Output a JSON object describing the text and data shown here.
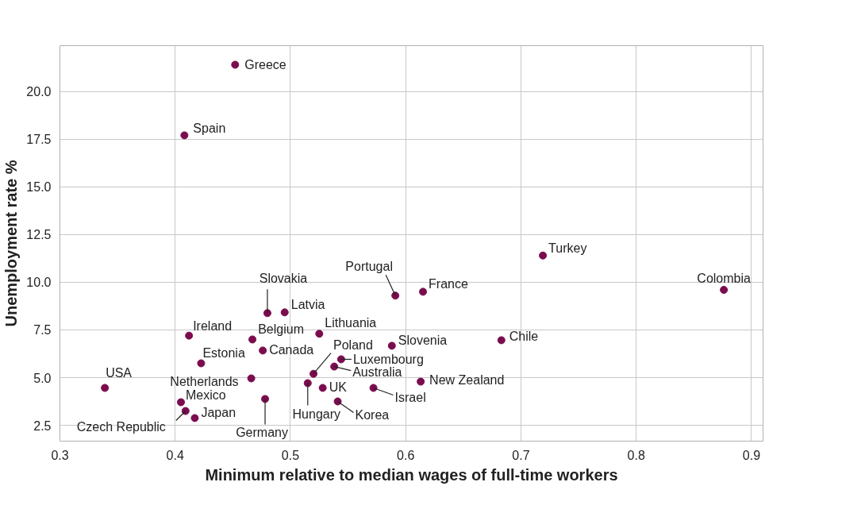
{
  "chart_data": {
    "type": "scatter",
    "xlabel": "Minimum relative to median wages of full-time workers",
    "ylabel": "Unemployment rate %",
    "xlim": [
      0.3,
      0.91
    ],
    "ylim": [
      1.67,
      22.4
    ],
    "xticks": [
      0.3,
      0.4,
      0.5,
      0.6,
      0.7,
      0.8,
      0.9
    ],
    "yticks": [
      {
        "value": 2.5,
        "label": "2.5"
      },
      {
        "value": 5,
        "label": "5.0"
      },
      {
        "value": 7.5,
        "label": "7.5"
      },
      {
        "value": 10,
        "label": "10.0"
      },
      {
        "value": 12.5,
        "label": "12.5"
      },
      {
        "value": 15,
        "label": "15.0"
      },
      {
        "value": 17.5,
        "label": "17.5"
      },
      {
        "value": 20,
        "label": "20.0"
      }
    ],
    "grid": true,
    "marker": "circle",
    "series": [
      {
        "name": "Greece",
        "color": "#7b0c4e",
        "x": [
          0.452
        ],
        "values": [
          21.4
        ]
      },
      {
        "name": "Spain",
        "color": "#7b0c4e",
        "x": [
          0.408
        ],
        "values": [
          17.7
        ]
      },
      {
        "name": "Turkey",
        "color": "#7b0c4e",
        "x": [
          0.719
        ],
        "values": [
          11.4
        ]
      },
      {
        "name": "Colombia",
        "color": "#7b0c4e",
        "x": [
          0.876
        ],
        "values": [
          9.6
        ]
      },
      {
        "name": "France",
        "color": "#7b0c4e",
        "x": [
          0.615
        ],
        "values": [
          9.5
        ]
      },
      {
        "name": "Portugal",
        "color": "#7b0c4e",
        "x": [
          0.591
        ],
        "values": [
          9.3
        ]
      },
      {
        "name": "Chile",
        "color": "#7b0c4e",
        "x": [
          0.683
        ],
        "values": [
          6.96
        ]
      },
      {
        "name": "Slovenia",
        "color": "#7b0c4e",
        "x": [
          0.588
        ],
        "values": [
          6.67
        ]
      },
      {
        "name": "Slovakia",
        "color": "#7b0c4e",
        "x": [
          0.48
        ],
        "values": [
          8.38
        ]
      },
      {
        "name": "Latvia",
        "color": "#7b0c4e",
        "x": [
          0.495
        ],
        "values": [
          8.42
        ]
      },
      {
        "name": "Lithuania",
        "color": "#7b0c4e",
        "x": [
          0.525
        ],
        "values": [
          7.3
        ]
      },
      {
        "name": "Ireland",
        "color": "#7b0c4e",
        "x": [
          0.412
        ],
        "values": [
          7.2
        ]
      },
      {
        "name": "Belgium",
        "color": "#7b0c4e",
        "x": [
          0.467
        ],
        "values": [
          7.0
        ]
      },
      {
        "name": "Canada",
        "color": "#7b0c4e",
        "x": [
          0.476
        ],
        "values": [
          6.42
        ]
      },
      {
        "name": "Estonia",
        "color": "#7b0c4e",
        "x": [
          0.4225
        ],
        "values": [
          5.75
        ]
      },
      {
        "name": "Poland",
        "color": "#7b0c4e",
        "x": [
          0.52
        ],
        "values": [
          5.2
        ]
      },
      {
        "name": "Luxembourg",
        "color": "#7b0c4e",
        "x": [
          0.544
        ],
        "values": [
          5.96
        ]
      },
      {
        "name": "Australia",
        "color": "#7b0c4e",
        "x": [
          0.538
        ],
        "values": [
          5.58
        ]
      },
      {
        "name": "New Zealand",
        "color": "#7b0c4e",
        "x": [
          0.613
        ],
        "values": [
          4.79
        ]
      },
      {
        "name": "Netherlands",
        "color": "#7b0c4e",
        "x": [
          0.466
        ],
        "values": [
          4.96
        ]
      },
      {
        "name": "USA",
        "color": "#7b0c4e",
        "x": [
          0.339
        ],
        "values": [
          4.46
        ]
      },
      {
        "name": "Hungary",
        "color": "#7b0c4e",
        "x": [
          0.515
        ],
        "values": [
          4.71
        ]
      },
      {
        "name": "UK",
        "color": "#7b0c4e",
        "x": [
          0.528
        ],
        "values": [
          4.46
        ]
      },
      {
        "name": "Israel",
        "color": "#7b0c4e",
        "x": [
          0.572
        ],
        "values": [
          4.46
        ]
      },
      {
        "name": "Mexico",
        "color": "#7b0c4e",
        "x": [
          0.405
        ],
        "values": [
          3.71
        ]
      },
      {
        "name": "Germany",
        "color": "#7b0c4e",
        "x": [
          0.478
        ],
        "values": [
          3.88
        ]
      },
      {
        "name": "Korea",
        "color": "#7b0c4e",
        "x": [
          0.541
        ],
        "values": [
          3.75
        ]
      },
      {
        "name": "Czech Republic",
        "color": "#7b0c4e",
        "x": [
          0.409
        ],
        "values": [
          3.25
        ]
      },
      {
        "name": "Japan",
        "color": "#7b0c4e",
        "x": [
          0.417
        ],
        "values": [
          2.88
        ]
      }
    ]
  }
}
